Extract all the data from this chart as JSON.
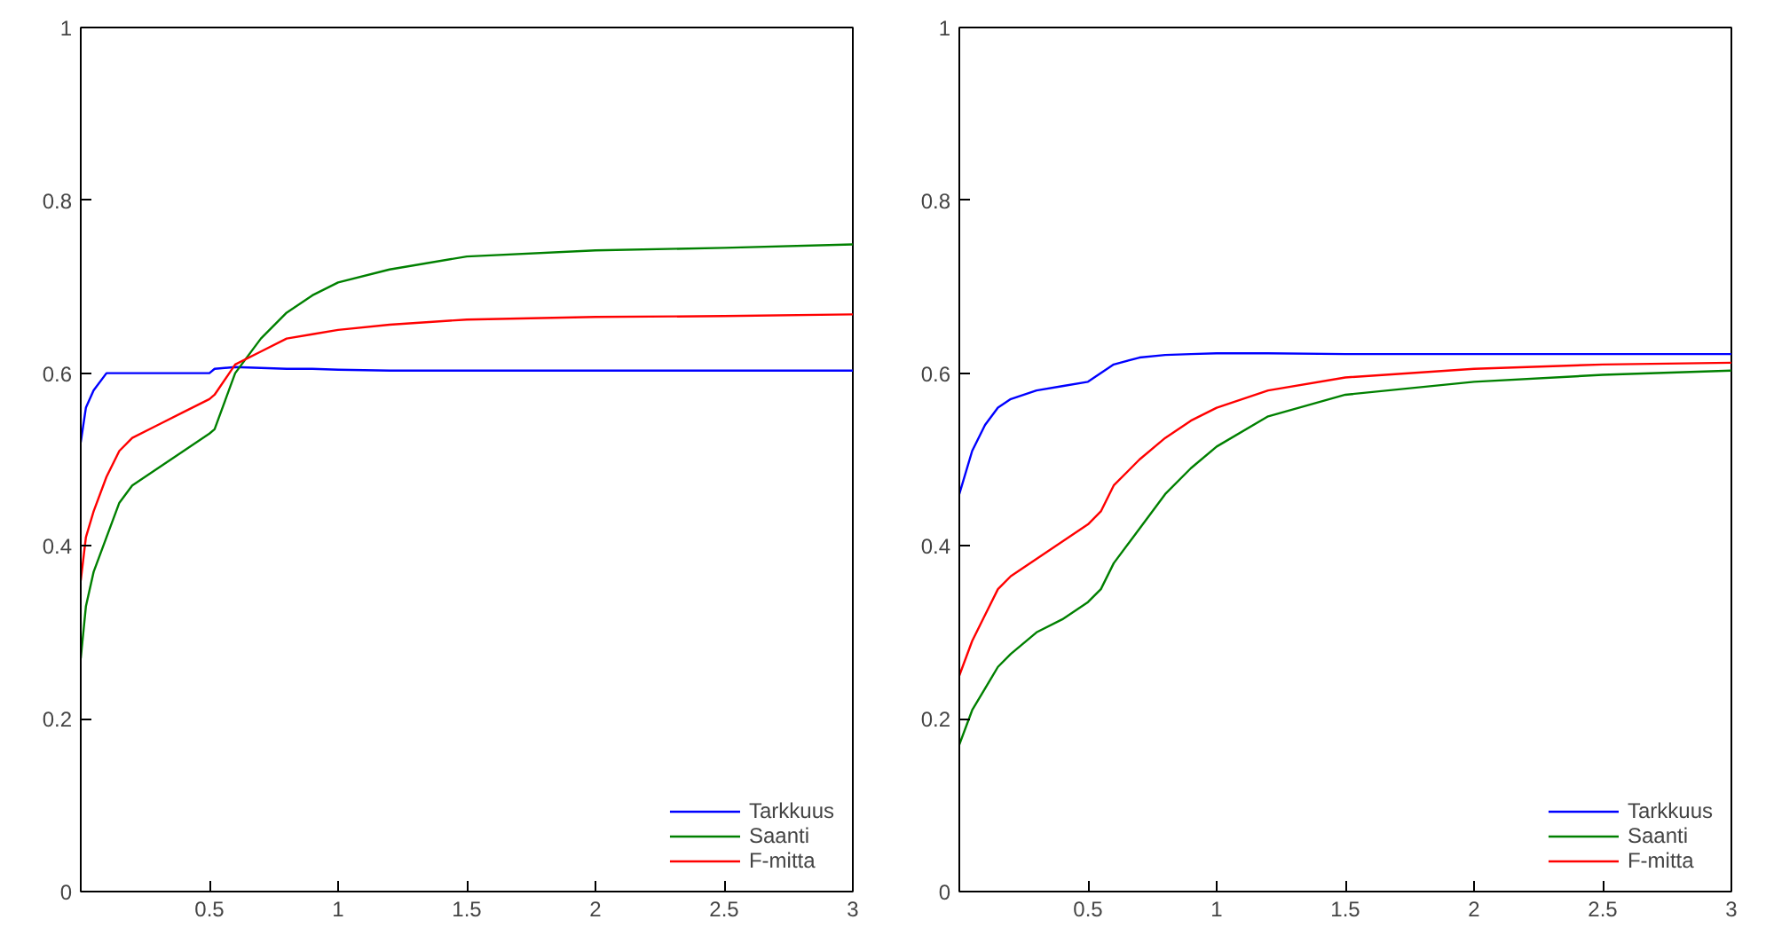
{
  "chart_data": [
    {
      "type": "line",
      "x": [
        0,
        0.02,
        0.05,
        0.1,
        0.15,
        0.2,
        0.3,
        0.4,
        0.5,
        0.52,
        0.6,
        0.7,
        0.8,
        0.9,
        1,
        1.2,
        1.5,
        2,
        2.5,
        3
      ],
      "series": [
        {
          "name": "Tarkkuus",
          "color": "#0000ff",
          "values": [
            0.52,
            0.56,
            0.58,
            0.6,
            0.6,
            0.6,
            0.6,
            0.6,
            0.6,
            0.605,
            0.607,
            0.606,
            0.605,
            0.605,
            0.604,
            0.603,
            0.603,
            0.603,
            0.603,
            0.603
          ]
        },
        {
          "name": "Saanti",
          "color": "#008000",
          "values": [
            0.27,
            0.33,
            0.37,
            0.41,
            0.45,
            0.47,
            0.49,
            0.51,
            0.53,
            0.535,
            0.6,
            0.64,
            0.67,
            0.69,
            0.705,
            0.72,
            0.735,
            0.742,
            0.745,
            0.749
          ]
        },
        {
          "name": "F-mitta",
          "color": "#ff0000",
          "values": [
            0.36,
            0.41,
            0.44,
            0.48,
            0.51,
            0.525,
            0.54,
            0.555,
            0.57,
            0.575,
            0.61,
            0.625,
            0.64,
            0.645,
            0.65,
            0.656,
            0.662,
            0.665,
            0.666,
            0.668
          ]
        }
      ],
      "xlim": [
        0,
        3
      ],
      "ylim": [
        0,
        1
      ],
      "xticks": [
        0.5,
        1,
        1.5,
        2,
        2.5,
        3
      ],
      "yticks": [
        0,
        0.2,
        0.4,
        0.6,
        0.8,
        1
      ],
      "grid": false,
      "legend": "bottom right",
      "marker": "none",
      "line_style": "solid"
    },
    {
      "type": "line",
      "x": [
        0,
        0.05,
        0.1,
        0.15,
        0.2,
        0.3,
        0.4,
        0.5,
        0.55,
        0.6,
        0.7,
        0.8,
        0.9,
        1,
        1.2,
        1.5,
        2,
        2.5,
        3
      ],
      "series": [
        {
          "name": "Tarkkuus",
          "color": "#0000ff",
          "values": [
            0.46,
            0.51,
            0.54,
            0.56,
            0.57,
            0.58,
            0.585,
            0.59,
            0.6,
            0.61,
            0.618,
            0.621,
            0.622,
            0.623,
            0.623,
            0.622,
            0.622,
            0.622,
            0.622
          ]
        },
        {
          "name": "Saanti",
          "color": "#008000",
          "values": [
            0.17,
            0.21,
            0.235,
            0.26,
            0.275,
            0.3,
            0.315,
            0.335,
            0.35,
            0.38,
            0.42,
            0.46,
            0.49,
            0.515,
            0.55,
            0.575,
            0.59,
            0.598,
            0.603
          ]
        },
        {
          "name": "F-mitta",
          "color": "#ff0000",
          "values": [
            0.25,
            0.29,
            0.32,
            0.35,
            0.365,
            0.385,
            0.405,
            0.425,
            0.44,
            0.47,
            0.5,
            0.525,
            0.545,
            0.56,
            0.58,
            0.595,
            0.605,
            0.61,
            0.612
          ]
        }
      ],
      "xlim": [
        0,
        3
      ],
      "ylim": [
        0,
        1
      ],
      "xticks": [
        0.5,
        1,
        1.5,
        2,
        2.5,
        3
      ],
      "yticks": [
        0,
        0.2,
        0.4,
        0.6,
        0.8,
        1
      ],
      "grid": false,
      "legend": "bottom right",
      "marker": "none",
      "line_style": "solid"
    }
  ]
}
